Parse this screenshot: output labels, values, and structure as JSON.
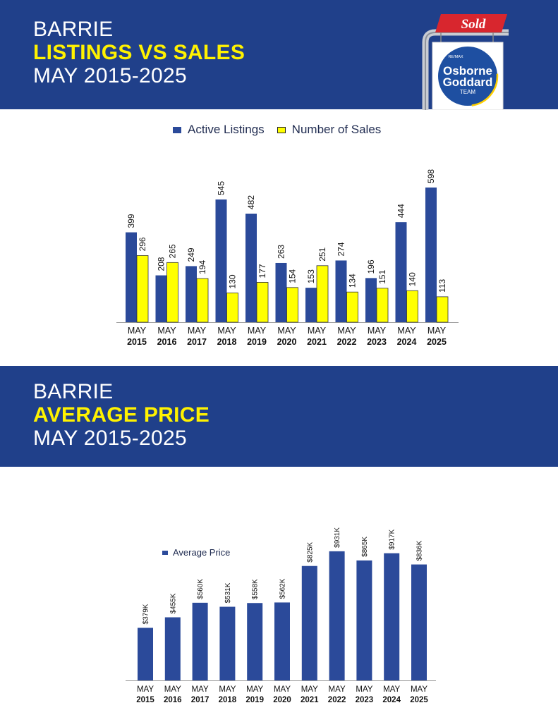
{
  "header1": {
    "line1": "BARRIE",
    "line2": "LISTINGS VS SALES",
    "line3": "MAY 2015-2025"
  },
  "header2": {
    "line1": "BARRIE",
    "line2": "AVERAGE PRICE",
    "line3": "MAY 2015-2025"
  },
  "logo": {
    "sold": "Sold",
    "remax": "RE/MAX",
    "name1": "Osborne",
    "name2": "Goddard",
    "name3": "TEAM"
  },
  "colors": {
    "banner": "#20408a",
    "accent_yellow": "#fff200",
    "bar_blue": "#2b4a9a",
    "bar_yellow": "#ffff00",
    "sold_red": "#d8262e"
  },
  "chart_data": [
    {
      "type": "bar",
      "categories": [
        [
          "MAY",
          "2015"
        ],
        [
          "MAY",
          "2016"
        ],
        [
          "MAY",
          "2017"
        ],
        [
          "MAY",
          "2018"
        ],
        [
          "MAY",
          "2019"
        ],
        [
          "MAY",
          "2020"
        ],
        [
          "MAY",
          "2021"
        ],
        [
          "MAY",
          "2022"
        ],
        [
          "MAY",
          "2023"
        ],
        [
          "MAY",
          "2024"
        ],
        [
          "MAY",
          "2025"
        ]
      ],
      "series": [
        {
          "name": "Active Listings",
          "values": [
            399,
            208,
            249,
            545,
            482,
            263,
            153,
            274,
            196,
            444,
            598
          ],
          "color": "#2b4a9a"
        },
        {
          "name": "Number of Sales",
          "values": [
            296,
            265,
            194,
            130,
            177,
            154,
            251,
            134,
            151,
            140,
            113
          ],
          "color": "#ffff00"
        }
      ],
      "legend": "top-center",
      "grid": false
    },
    {
      "type": "bar",
      "categories": [
        [
          "MAY",
          "2015"
        ],
        [
          "MAY",
          "2016"
        ],
        [
          "MAY",
          "2017"
        ],
        [
          "MAY",
          "2018"
        ],
        [
          "MAY",
          "2019"
        ],
        [
          "MAY",
          "2020"
        ],
        [
          "MAY",
          "2021"
        ],
        [
          "MAY",
          "2022"
        ],
        [
          "MAY",
          "2023"
        ],
        [
          "MAY",
          "2024"
        ],
        [
          "MAY",
          "2025"
        ]
      ],
      "series": [
        {
          "name": "Average Price",
          "values": [
            379,
            455,
            560,
            531,
            558,
            562,
            825,
            931,
            865,
            917,
            836
          ],
          "labels": [
            "$379K",
            "$455K",
            "$560K",
            "$531K",
            "$558K",
            "$562K",
            "$825K",
            "$931K",
            "$865K",
            "$917K",
            "$836K"
          ],
          "color": "#2b4a9a"
        }
      ],
      "legend": "top-left",
      "grid": false
    }
  ]
}
